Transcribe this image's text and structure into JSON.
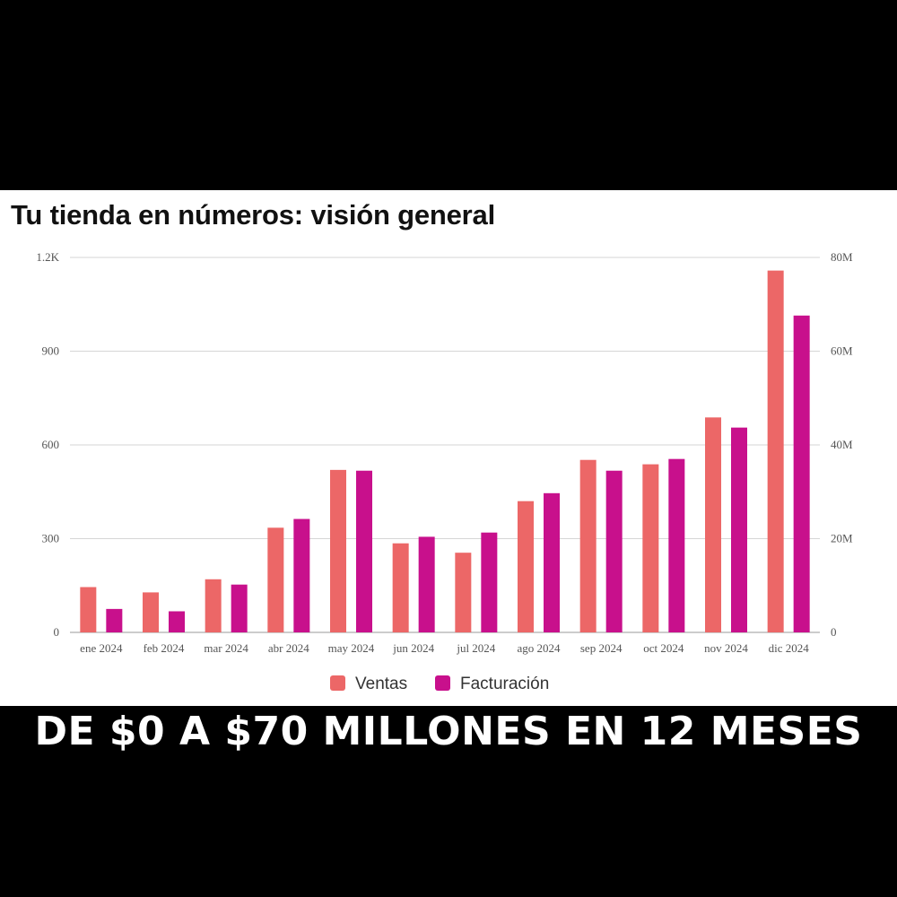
{
  "caption": "DE $0 A $70 MILLONES EN 12 MESES",
  "chart_data": {
    "type": "bar",
    "title": "Tu tienda en números: visión general",
    "xlabel": "",
    "ylabel": "",
    "categories": [
      "ene 2024",
      "feb 2024",
      "mar 2024",
      "abr 2024",
      "may 2024",
      "jun 2024",
      "jul 2024",
      "ago 2024",
      "sep 2024",
      "oct 2024",
      "nov 2024",
      "dic 2024"
    ],
    "series": [
      {
        "name": "Ventas",
        "axis": "left",
        "color": "#ec6767",
        "values": [
          145,
          128,
          170,
          335,
          520,
          285,
          255,
          420,
          552,
          538,
          688,
          1158
        ]
      },
      {
        "name": "Facturación",
        "axis": "right",
        "color": "#c8108c",
        "values": [
          5.0,
          4.5,
          10.2,
          24.2,
          34.5,
          20.4,
          21.3,
          29.7,
          34.5,
          37.0,
          43.7,
          67.6
        ]
      }
    ],
    "y_left": {
      "ylim": [
        0,
        1200
      ],
      "ticks": [
        0,
        300,
        600,
        900,
        1200
      ],
      "tick_labels": [
        "0",
        "300",
        "600",
        "900",
        "1.2K"
      ]
    },
    "y_right": {
      "ylim": [
        0,
        80
      ],
      "ticks": [
        0,
        20,
        40,
        60,
        80
      ],
      "tick_labels": [
        "0",
        "20M",
        "40M",
        "60M",
        "80M"
      ],
      "unit": "millones"
    },
    "grid": true,
    "legend_position": "bottom-center"
  }
}
